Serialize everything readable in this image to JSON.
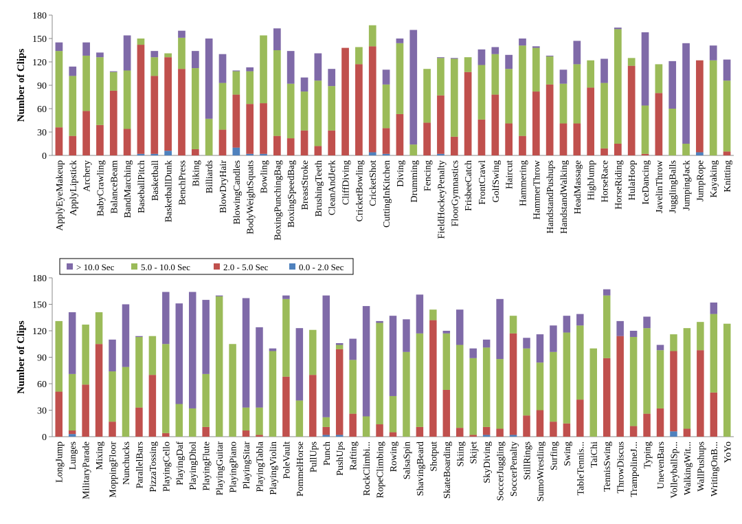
{
  "legend": [
    {
      "label": "> 10.0 Sec",
      "color": "#7f6aa8"
    },
    {
      "label": "5.0 - 10.0 Sec",
      "color": "#9bbb59"
    },
    {
      "label": "2.0 - 5.0 Sec",
      "color": "#c0504d"
    },
    {
      "label": "0.0 - 2.0 Sec",
      "color": "#4f81bd"
    }
  ],
  "chart_data": [
    {
      "type": "bar",
      "stacked": true,
      "ylabel": "Number of Clips",
      "xlabel": "",
      "ylim": [
        0,
        180
      ],
      "yticks": [
        0,
        30,
        60,
        90,
        120,
        150,
        180
      ],
      "grid": false,
      "categories": [
        "ApplyEyeMakeup",
        "ApplyLipstick",
        "Archery",
        "BabyCrawling",
        "BalanceBeam",
        "BandMarching",
        "BaseballPitch",
        "Basketball",
        "BasketballDunk",
        "BenchPress",
        "Biking",
        "Billiards",
        "BlowDryHair",
        "BlowingCandles",
        "BodyWeightSquats",
        "Bowling",
        "BoxingPunchingBag",
        "BoxingSpeedBag",
        "BreastStroke",
        "BrushingTeeth",
        "CleanAndJerk",
        "CliffDiving",
        "CricketBowling",
        "CricketShot",
        "CuttingInKitchen",
        "Diving",
        "Drumming",
        "Fencing",
        "FieldHockeyPenalty",
        "FloorGymnastics",
        "FrisbeeCatch",
        "FrontCrawl",
        "GolfSwing",
        "Haircut",
        "Hammering",
        "HammerThrow",
        "HandstandPushups",
        "HandstandWalking",
        "HeadMassage",
        "HighJump",
        "HorseRace",
        "HorseRiding",
        "HulaHoop",
        "IceDancing",
        "JavelinThrow",
        "JugglingBalls",
        "JumpingJack",
        "JumpRope",
        "Kayaking",
        "Knitting"
      ],
      "series": [
        {
          "name": "0.0 - 2.0 Sec",
          "values": [
            0,
            0,
            0,
            0,
            0,
            0,
            2,
            2,
            6,
            0,
            0,
            0,
            0,
            10,
            2,
            2,
            0,
            0,
            0,
            0,
            0,
            0,
            0,
            4,
            2,
            0,
            0,
            0,
            2,
            0,
            0,
            0,
            0,
            0,
            0,
            0,
            0,
            0,
            0,
            0,
            0,
            0,
            0,
            0,
            0,
            0,
            0,
            4,
            0,
            0
          ]
        },
        {
          "name": "2.0 - 5.0 Sec",
          "values": [
            36,
            25,
            57,
            39,
            83,
            34,
            140,
            100,
            120,
            111,
            8,
            0,
            33,
            68,
            64,
            65,
            25,
            22,
            32,
            12,
            32,
            138,
            117,
            136,
            33,
            53,
            0,
            42,
            75,
            24,
            107,
            46,
            78,
            41,
            25,
            82,
            91,
            41,
            41,
            87,
            9,
            15,
            115,
            2,
            80,
            0,
            0,
            118,
            0,
            5
          ]
        },
        {
          "name": "5.0 - 10.0 Sec",
          "values": [
            98,
            77,
            71,
            87,
            24,
            75,
            8,
            24,
            5,
            40,
            104,
            47,
            60,
            30,
            42,
            87,
            110,
            70,
            50,
            84,
            57,
            0,
            22,
            27,
            56,
            91,
            14,
            69,
            48,
            100,
            19,
            70,
            52,
            70,
            116,
            56,
            36,
            51,
            76,
            35,
            84,
            147,
            10,
            62,
            37,
            60,
            15,
            0,
            122,
            91
          ]
        },
        {
          "name": "> 10.0 Sec",
          "values": [
            11,
            12,
            17,
            6,
            1,
            45,
            0,
            8,
            0,
            9,
            22,
            103,
            37,
            1,
            5,
            0,
            28,
            42,
            18,
            35,
            22,
            0,
            0,
            0,
            19,
            6,
            147,
            0,
            1,
            1,
            0,
            20,
            9,
            18,
            9,
            2,
            1,
            18,
            30,
            0,
            31,
            2,
            0,
            94,
            0,
            61,
            129,
            0,
            19,
            27
          ]
        }
      ]
    },
    {
      "type": "bar",
      "stacked": true,
      "ylabel": "Number of Clips",
      "xlabel": "",
      "ylim": [
        0,
        180
      ],
      "yticks": [
        0,
        30,
        60,
        90,
        120,
        150,
        180
      ],
      "grid": false,
      "categories": [
        "LongJump",
        "Lunges",
        "MilitaryParade",
        "Mixing",
        "MoppingFloor",
        "Nunchucks",
        "ParallelBars",
        "PizzaTossing",
        "PlayingCello",
        "PlayingDaf",
        "PlayingDhol",
        "PlayingFlute",
        "PlayingGuitar",
        "PlayingPiano",
        "PlayingSitar",
        "PlayingTabla",
        "PlayingViolin",
        "PoleVault",
        "PommelHorse",
        "PullUps",
        "Punch",
        "PushUps",
        "Rafting",
        "RockClimbi...",
        "RopeClimbing",
        "Rowing",
        "SalsaSpin",
        "ShavingBeard",
        "Shotput",
        "SkateBoarding",
        "Skiing",
        "Skijet",
        "SkyDiving",
        "SoccerJuggling",
        "SoccerPenalty",
        "StillRings",
        "SumoWrestling",
        "Surfing",
        "Swing",
        "TableTennis...",
        "TaiChi",
        "TennisSwing",
        "ThrowDiscus",
        "TrampolineJ...",
        "Typing",
        "UnevenBars",
        "VolleyballSp...",
        "WalkingWit...",
        "WallPushups",
        "WritingOnB...",
        "YoYo"
      ],
      "series": [
        {
          "name": "0.0 - 2.0 Sec",
          "values": [
            0,
            3,
            0,
            0,
            0,
            0,
            0,
            0,
            0,
            0,
            0,
            0,
            0,
            0,
            0,
            0,
            0,
            0,
            0,
            0,
            2,
            2,
            0,
            0,
            0,
            0,
            0,
            0,
            0,
            0,
            0,
            0,
            2,
            0,
            2,
            0,
            0,
            0,
            0,
            0,
            0,
            0,
            0,
            0,
            0,
            0,
            6,
            0,
            0,
            0,
            0
          ]
        },
        {
          "name": "2.0 - 5.0 Sec",
          "values": [
            51,
            4,
            59,
            105,
            17,
            0,
            33,
            70,
            4,
            0,
            0,
            11,
            0,
            0,
            7,
            2,
            0,
            68,
            0,
            70,
            9,
            97,
            26,
            0,
            14,
            5,
            0,
            11,
            132,
            53,
            10,
            2,
            9,
            9,
            115,
            24,
            30,
            17,
            15,
            42,
            0,
            89,
            114,
            12,
            26,
            32,
            91,
            9,
            98,
            50,
            0
          ]
        },
        {
          "name": "5.0 - 10.0 Sec",
          "values": [
            80,
            64,
            68,
            36,
            57,
            79,
            80,
            44,
            101,
            37,
            32,
            60,
            159,
            105,
            26,
            31,
            97,
            88,
            41,
            51,
            11,
            5,
            61,
            23,
            115,
            41,
            96,
            106,
            12,
            64,
            94,
            87,
            90,
            79,
            20,
            76,
            54,
            79,
            103,
            84,
            100,
            71,
            0,
            101,
            97,
            66,
            19,
            114,
            32,
            89,
            128
          ]
        },
        {
          "name": "> 10.0 Sec",
          "values": [
            0,
            70,
            0,
            0,
            36,
            71,
            1,
            0,
            59,
            114,
            132,
            84,
            1,
            0,
            124,
            91,
            3,
            4,
            82,
            0,
            138,
            2,
            24,
            125,
            2,
            91,
            37,
            44,
            0,
            3,
            40,
            11,
            9,
            68,
            0,
            12,
            32,
            30,
            19,
            13,
            0,
            7,
            17,
            7,
            13,
            6,
            0,
            0,
            0,
            13,
            0
          ]
        }
      ]
    }
  ]
}
